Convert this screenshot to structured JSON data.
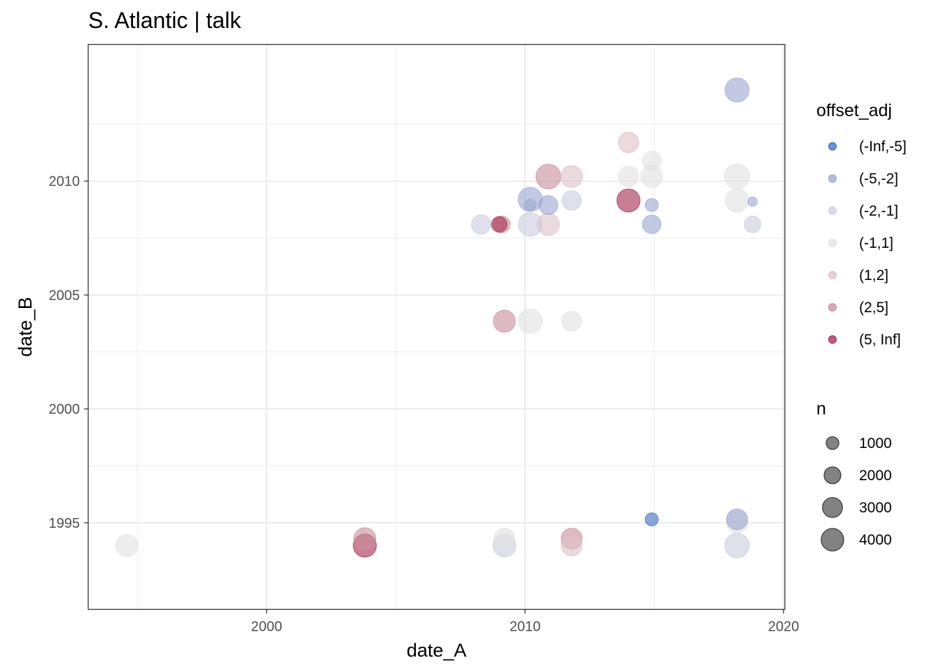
{
  "chart_data": {
    "type": "scatter",
    "title": "S. Atlantic | talk",
    "xlabel": "date_A",
    "ylabel": "date_B",
    "xlim": [
      1993.1,
      2020.05
    ],
    "ylim": [
      1991.2,
      2016.0
    ],
    "x_ticks": [
      2000,
      2010,
      2020
    ],
    "y_ticks": [
      1995,
      2000,
      2005,
      2010
    ],
    "x_tick_labels": [
      "2000",
      "2010",
      "2020"
    ],
    "y_tick_labels": [
      "1995",
      "2000",
      "2005",
      "2010"
    ],
    "grid": true,
    "color_legend": {
      "title": "offset_adj",
      "position": "right",
      "categories": [
        {
          "label": "(-Inf,-5]",
          "color": "#3d6bc0"
        },
        {
          "label": "(-5,-2]",
          "color": "#9aa6d0"
        },
        {
          "label": "(-2,-1]",
          "color": "#c8cde0"
        },
        {
          "label": "(-1,1]",
          "color": "#e1e1e1"
        },
        {
          "label": "(1,2]",
          "color": "#dcc1c6"
        },
        {
          "label": "(2,5]",
          "color": "#c88e9b"
        },
        {
          "label": "(5, Inf]",
          "color": "#a3294f"
        }
      ]
    },
    "size_legend": {
      "title": "n",
      "values": [
        1000,
        2000,
        3000,
        4000
      ],
      "labels": [
        "1000",
        "2000",
        "3000",
        "4000"
      ]
    },
    "points": [
      {
        "x": 2018.2,
        "y": 2014.0,
        "n": 3200,
        "offset": "(-5,-2]"
      },
      {
        "x": 2014.0,
        "y": 2011.7,
        "n": 2200,
        "offset": "(1,2]"
      },
      {
        "x": 2014.9,
        "y": 2010.9,
        "n": 1800,
        "offset": "(-1,1]"
      },
      {
        "x": 2010.9,
        "y": 2010.2,
        "n": 3400,
        "offset": "(2,5]"
      },
      {
        "x": 2011.8,
        "y": 2010.2,
        "n": 2600,
        "offset": "(1,2]"
      },
      {
        "x": 2014.0,
        "y": 2010.2,
        "n": 2200,
        "offset": "(-1,1]"
      },
      {
        "x": 2014.9,
        "y": 2010.2,
        "n": 2600,
        "offset": "(-1,1]"
      },
      {
        "x": 2018.2,
        "y": 2010.2,
        "n": 3600,
        "offset": "(-1,1]"
      },
      {
        "x": 2010.2,
        "y": 2009.2,
        "n": 3200,
        "offset": "(-5,-2]"
      },
      {
        "x": 2010.2,
        "y": 2008.95,
        "n": 500,
        "offset": "(-5,-2]"
      },
      {
        "x": 2010.9,
        "y": 2008.95,
        "n": 1800,
        "offset": "(-5,-2]"
      },
      {
        "x": 2011.8,
        "y": 2009.15,
        "n": 1900,
        "offset": "(-2,-1]"
      },
      {
        "x": 2014.0,
        "y": 2009.15,
        "n": 2900,
        "offset": "(5, Inf]"
      },
      {
        "x": 2014.9,
        "y": 2008.95,
        "n": 700,
        "offset": "(-5,-2]"
      },
      {
        "x": 2018.2,
        "y": 2009.15,
        "n": 3000,
        "offset": "(-1,1]"
      },
      {
        "x": 2018.8,
        "y": 2009.1,
        "n": 250,
        "offset": "(-5,-2]"
      },
      {
        "x": 2008.3,
        "y": 2008.1,
        "n": 1900,
        "offset": "(-2,-1]"
      },
      {
        "x": 2009.0,
        "y": 2008.1,
        "n": 1100,
        "offset": "(5, Inf]"
      },
      {
        "x": 2009.1,
        "y": 2008.1,
        "n": 1300,
        "offset": "(2,5]"
      },
      {
        "x": 2010.2,
        "y": 2008.1,
        "n": 3100,
        "offset": "(-2,-1]"
      },
      {
        "x": 2010.9,
        "y": 2008.1,
        "n": 2700,
        "offset": "(1,2]"
      },
      {
        "x": 2014.9,
        "y": 2008.1,
        "n": 1700,
        "offset": "(-5,-2]"
      },
      {
        "x": 2018.8,
        "y": 2008.1,
        "n": 1300,
        "offset": "(-2,-1]"
      },
      {
        "x": 2009.2,
        "y": 2003.85,
        "n": 2600,
        "offset": "(2,5]"
      },
      {
        "x": 2010.2,
        "y": 2003.85,
        "n": 3200,
        "offset": "(-1,1]"
      },
      {
        "x": 2011.8,
        "y": 2003.85,
        "n": 2000,
        "offset": "(-1,1]"
      },
      {
        "x": 2014.9,
        "y": 1995.15,
        "n": 700,
        "offset": "(-Inf,-5]"
      },
      {
        "x": 2018.2,
        "y": 1995.05,
        "n": 2600,
        "offset": "(-1,1]"
      },
      {
        "x": 2018.2,
        "y": 1995.15,
        "n": 2300,
        "offset": "(-5,-2]"
      },
      {
        "x": 1994.6,
        "y": 1994.0,
        "n": 2600,
        "offset": "(-1,1]"
      },
      {
        "x": 2003.8,
        "y": 1994.3,
        "n": 2600,
        "offset": "(2,5]"
      },
      {
        "x": 2003.8,
        "y": 1994.0,
        "n": 2900,
        "offset": "(5, Inf]"
      },
      {
        "x": 2009.2,
        "y": 1994.3,
        "n": 2300,
        "offset": "(-1,1]"
      },
      {
        "x": 2009.2,
        "y": 1994.0,
        "n": 2800,
        "offset": "(-2,-1]"
      },
      {
        "x": 2011.8,
        "y": 1994.3,
        "n": 2300,
        "offset": "(2,5]"
      },
      {
        "x": 2011.8,
        "y": 1994.0,
        "n": 2300,
        "offset": "(1,2]"
      },
      {
        "x": 2018.2,
        "y": 1994.0,
        "n": 3400,
        "offset": "(-2,-1]"
      }
    ]
  }
}
